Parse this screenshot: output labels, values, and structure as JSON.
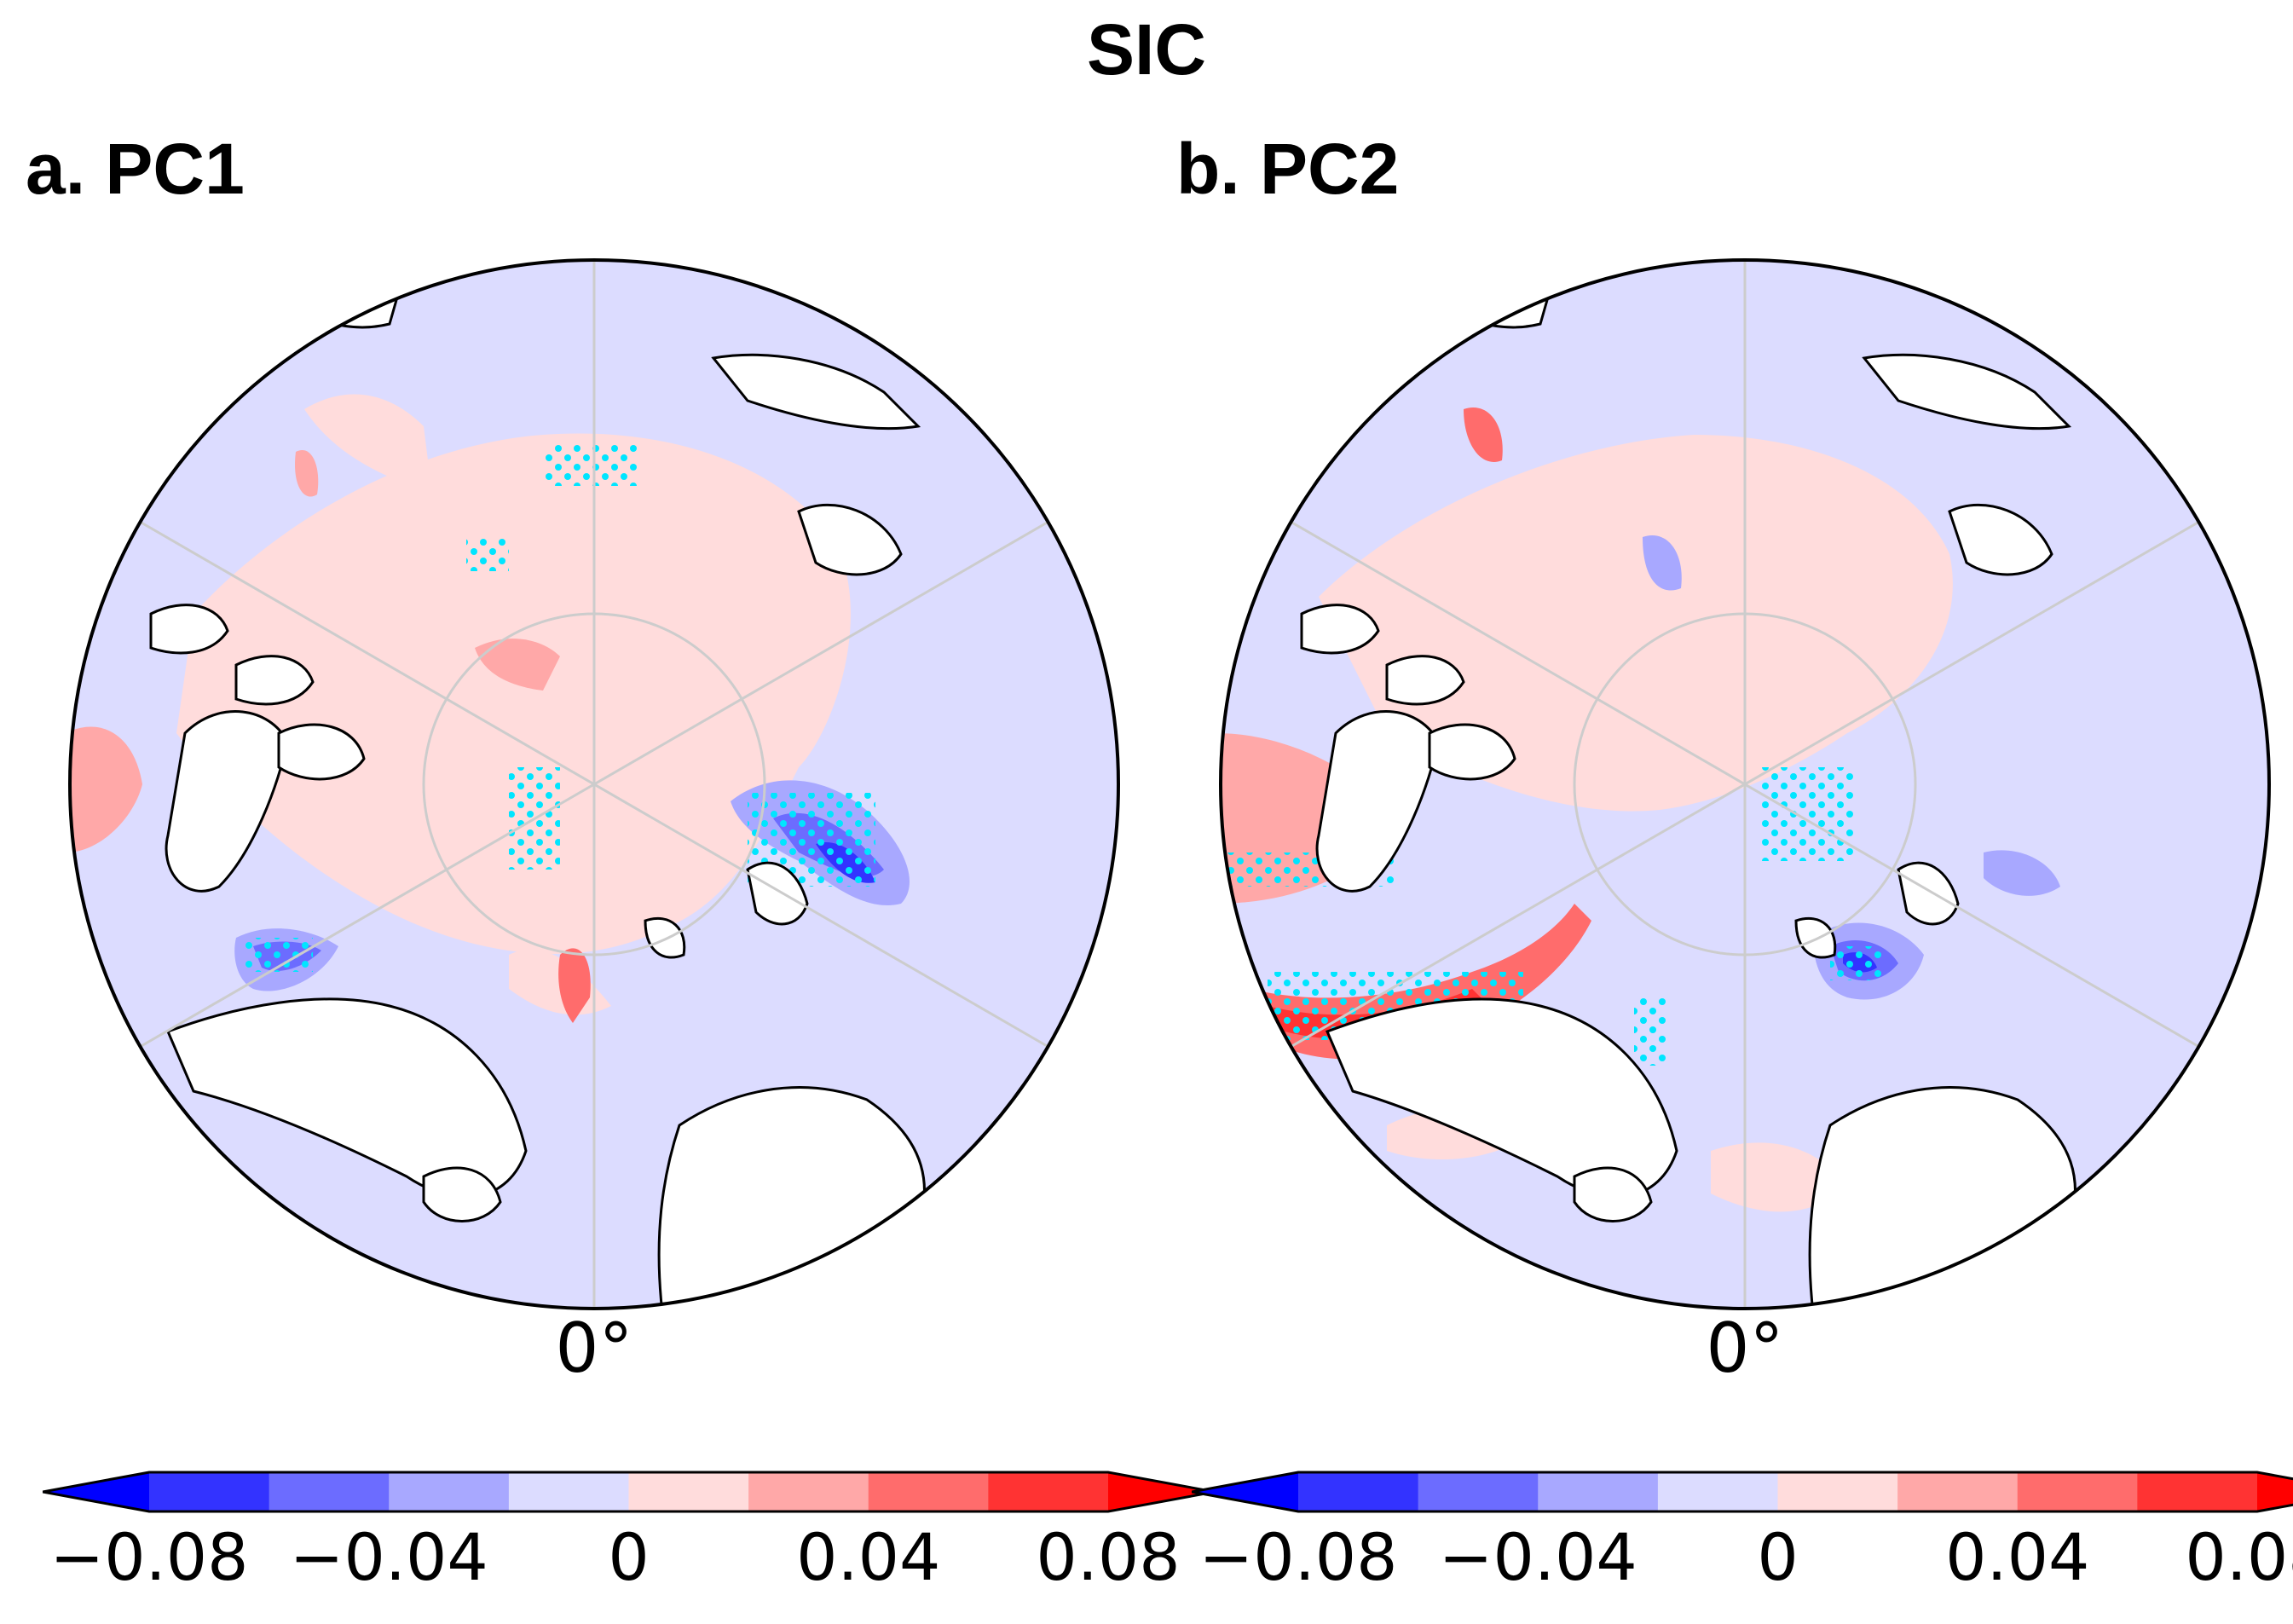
{
  "figure": {
    "title": "SIC",
    "panels": [
      {
        "id": "a",
        "title": "a. PC1",
        "longitude_label": "0°"
      },
      {
        "id": "b",
        "title": "b. PC2",
        "longitude_label": "0°"
      }
    ]
  },
  "colorbar": {
    "levels": [
      -0.08,
      -0.06,
      -0.04,
      -0.02,
      0,
      0.02,
      0.04,
      0.06,
      0.08
    ],
    "tick_labels": [
      "−0.08",
      "−0.04",
      "0",
      "0.04",
      "0.08"
    ],
    "colors": [
      "#0000ff",
      "#3333ff",
      "#6c6cff",
      "#a8a8ff",
      "#dcdcff",
      "#ffdcdc",
      "#ffa8a8",
      "#ff6c6c",
      "#ff3333",
      "#ff0000"
    ],
    "extend": "both"
  },
  "style": {
    "land_color": "#ffffff",
    "coast_color": "#000000",
    "stipple_color": "#00e5ff",
    "grid_color": "#cccccc"
  }
}
